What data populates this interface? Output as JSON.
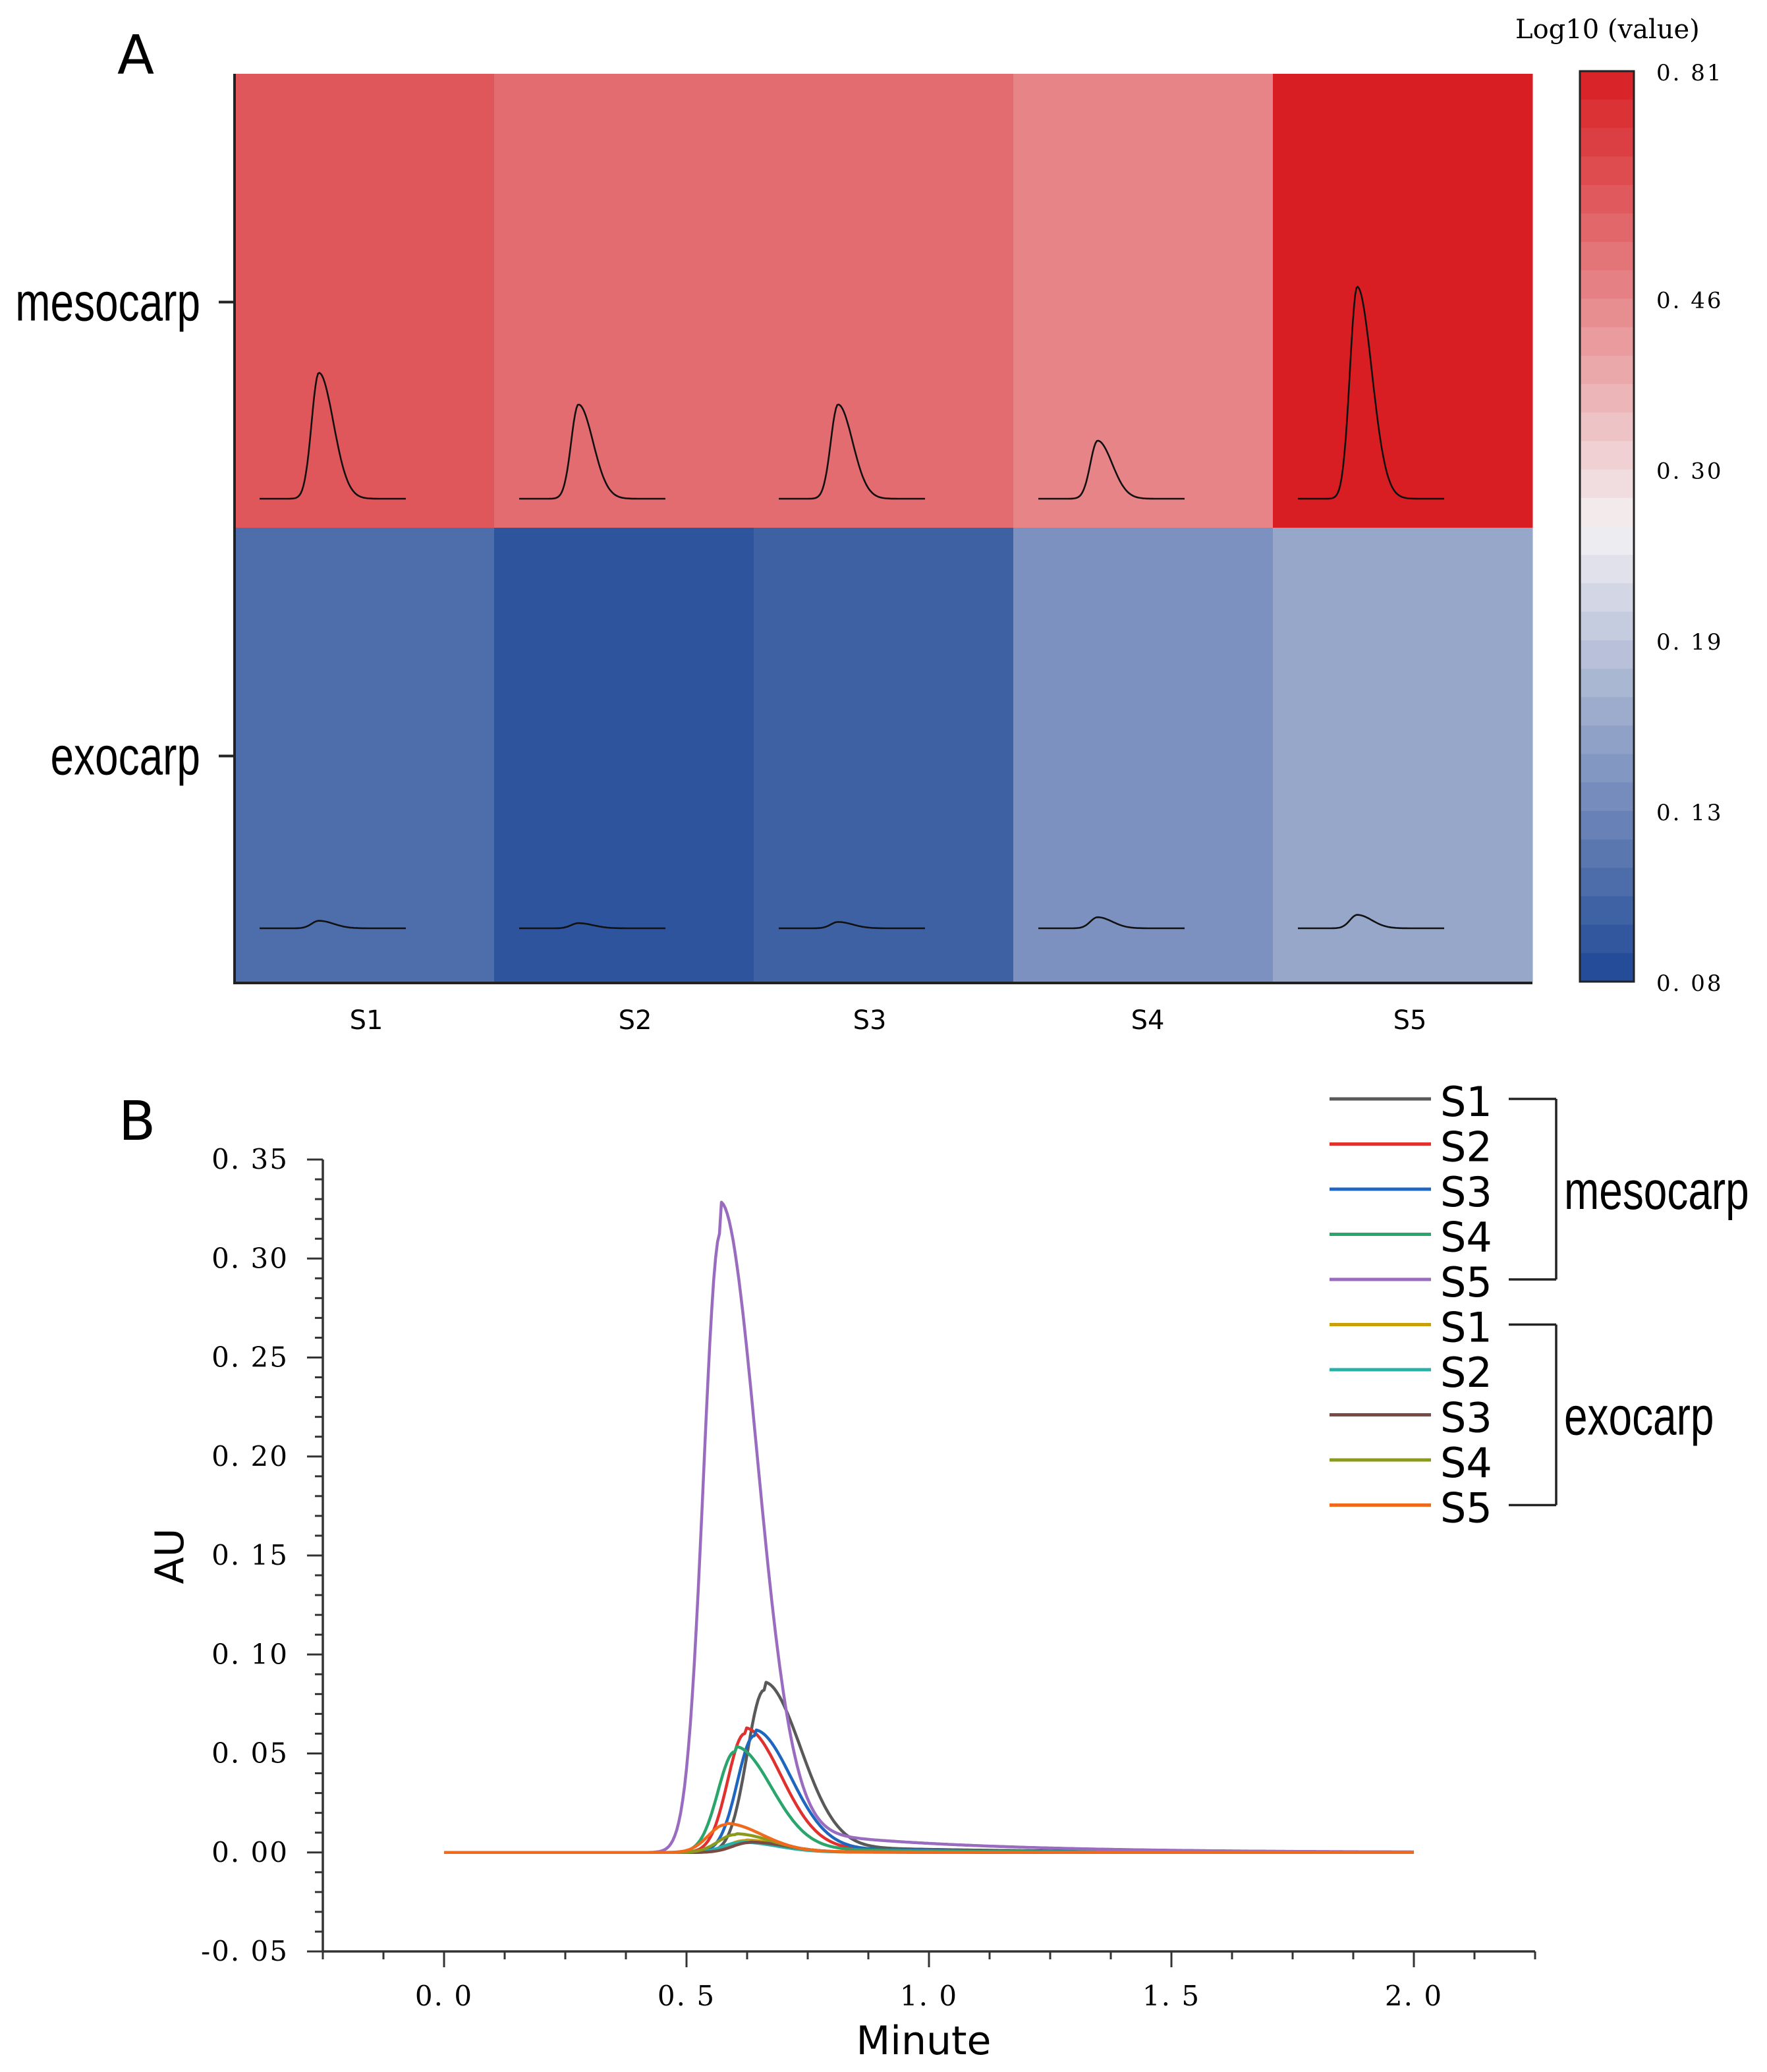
{
  "panel_a": {
    "panel_label": "A",
    "colorbar_title": "Log10 (value)",
    "colorbar_ticks": [
      "0.81",
      "0.46",
      "0.30",
      "0.19",
      "0.13",
      "0.08"
    ],
    "colors": {
      "high": "#d81e22",
      "mid": "#f4f1f3",
      "low": "#1e4796"
    }
  },
  "panel_b": {
    "panel_label": "B",
    "legend_groups": [
      {
        "label": "mesocarp",
        "entries": [
          {
            "name": "S1",
            "color": "#595959"
          },
          {
            "name": "S2",
            "color": "#e0312f"
          },
          {
            "name": "S3",
            "color": "#1f66bf"
          },
          {
            "name": "S4",
            "color": "#2aa56b"
          },
          {
            "name": "S5",
            "color": "#9a6cc0"
          }
        ]
      },
      {
        "label": "exocarp",
        "entries": [
          {
            "name": "S1",
            "color": "#c9a00a"
          },
          {
            "name": "S2",
            "color": "#28b0aa"
          },
          {
            "name": "S3",
            "color": "#7a4a45"
          },
          {
            "name": "S4",
            "color": "#8a9a1a"
          },
          {
            "name": "S5",
            "color": "#f06a1e"
          }
        ]
      }
    ]
  },
  "chart_data": [
    {
      "type": "heatmap",
      "title": "",
      "x_categories": [
        "S1",
        "S2",
        "S3",
        "S4",
        "S5"
      ],
      "y_categories": [
        "mesocarp",
        "exocarp"
      ],
      "values": [
        [
          0.62,
          0.55,
          0.55,
          0.47,
          0.81
        ],
        [
          0.11,
          0.09,
          0.1,
          0.14,
          0.16
        ]
      ],
      "colorbar": {
        "label": "Log10 (value)",
        "min": 0.08,
        "max": 0.81,
        "ticks": [
          0.81,
          0.46,
          0.3,
          0.19,
          0.13,
          0.08
        ]
      }
    },
    {
      "type": "line",
      "xlabel": "Minute",
      "ylabel": "AU",
      "xlim": [
        -0.25,
        2.25
      ],
      "ylim": [
        -0.05,
        0.35
      ],
      "xticks": [
        "0.0",
        "0.5",
        "1.0",
        "1.5",
        "2.0"
      ],
      "yticks": [
        "0.35",
        "0.30",
        "0.25",
        "0.20",
        "0.15",
        "0.10",
        "0.05",
        "0.00",
        "-0.05"
      ],
      "series": [
        {
          "name": "S1",
          "group": "mesocarp",
          "peak_time": 0.66,
          "peak_height": 0.082
        },
        {
          "name": "S2",
          "group": "mesocarp",
          "peak_time": 0.62,
          "peak_height": 0.06
        },
        {
          "name": "S3",
          "group": "mesocarp",
          "peak_time": 0.64,
          "peak_height": 0.059
        },
        {
          "name": "S4",
          "group": "mesocarp",
          "peak_time": 0.6,
          "peak_height": 0.051
        },
        {
          "name": "S5",
          "group": "mesocarp",
          "peak_time": 0.57,
          "peak_height": 0.313
        },
        {
          "name": "S1",
          "group": "exocarp",
          "peak_time": 0.62,
          "peak_height": 0.006
        },
        {
          "name": "S2",
          "group": "exocarp",
          "peak_time": 0.61,
          "peak_height": 0.005
        },
        {
          "name": "S3",
          "group": "exocarp",
          "peak_time": 0.63,
          "peak_height": 0.005
        },
        {
          "name": "S4",
          "group": "exocarp",
          "peak_time": 0.6,
          "peak_height": 0.009
        },
        {
          "name": "S5",
          "group": "exocarp",
          "peak_time": 0.58,
          "peak_height": 0.014
        }
      ]
    }
  ]
}
